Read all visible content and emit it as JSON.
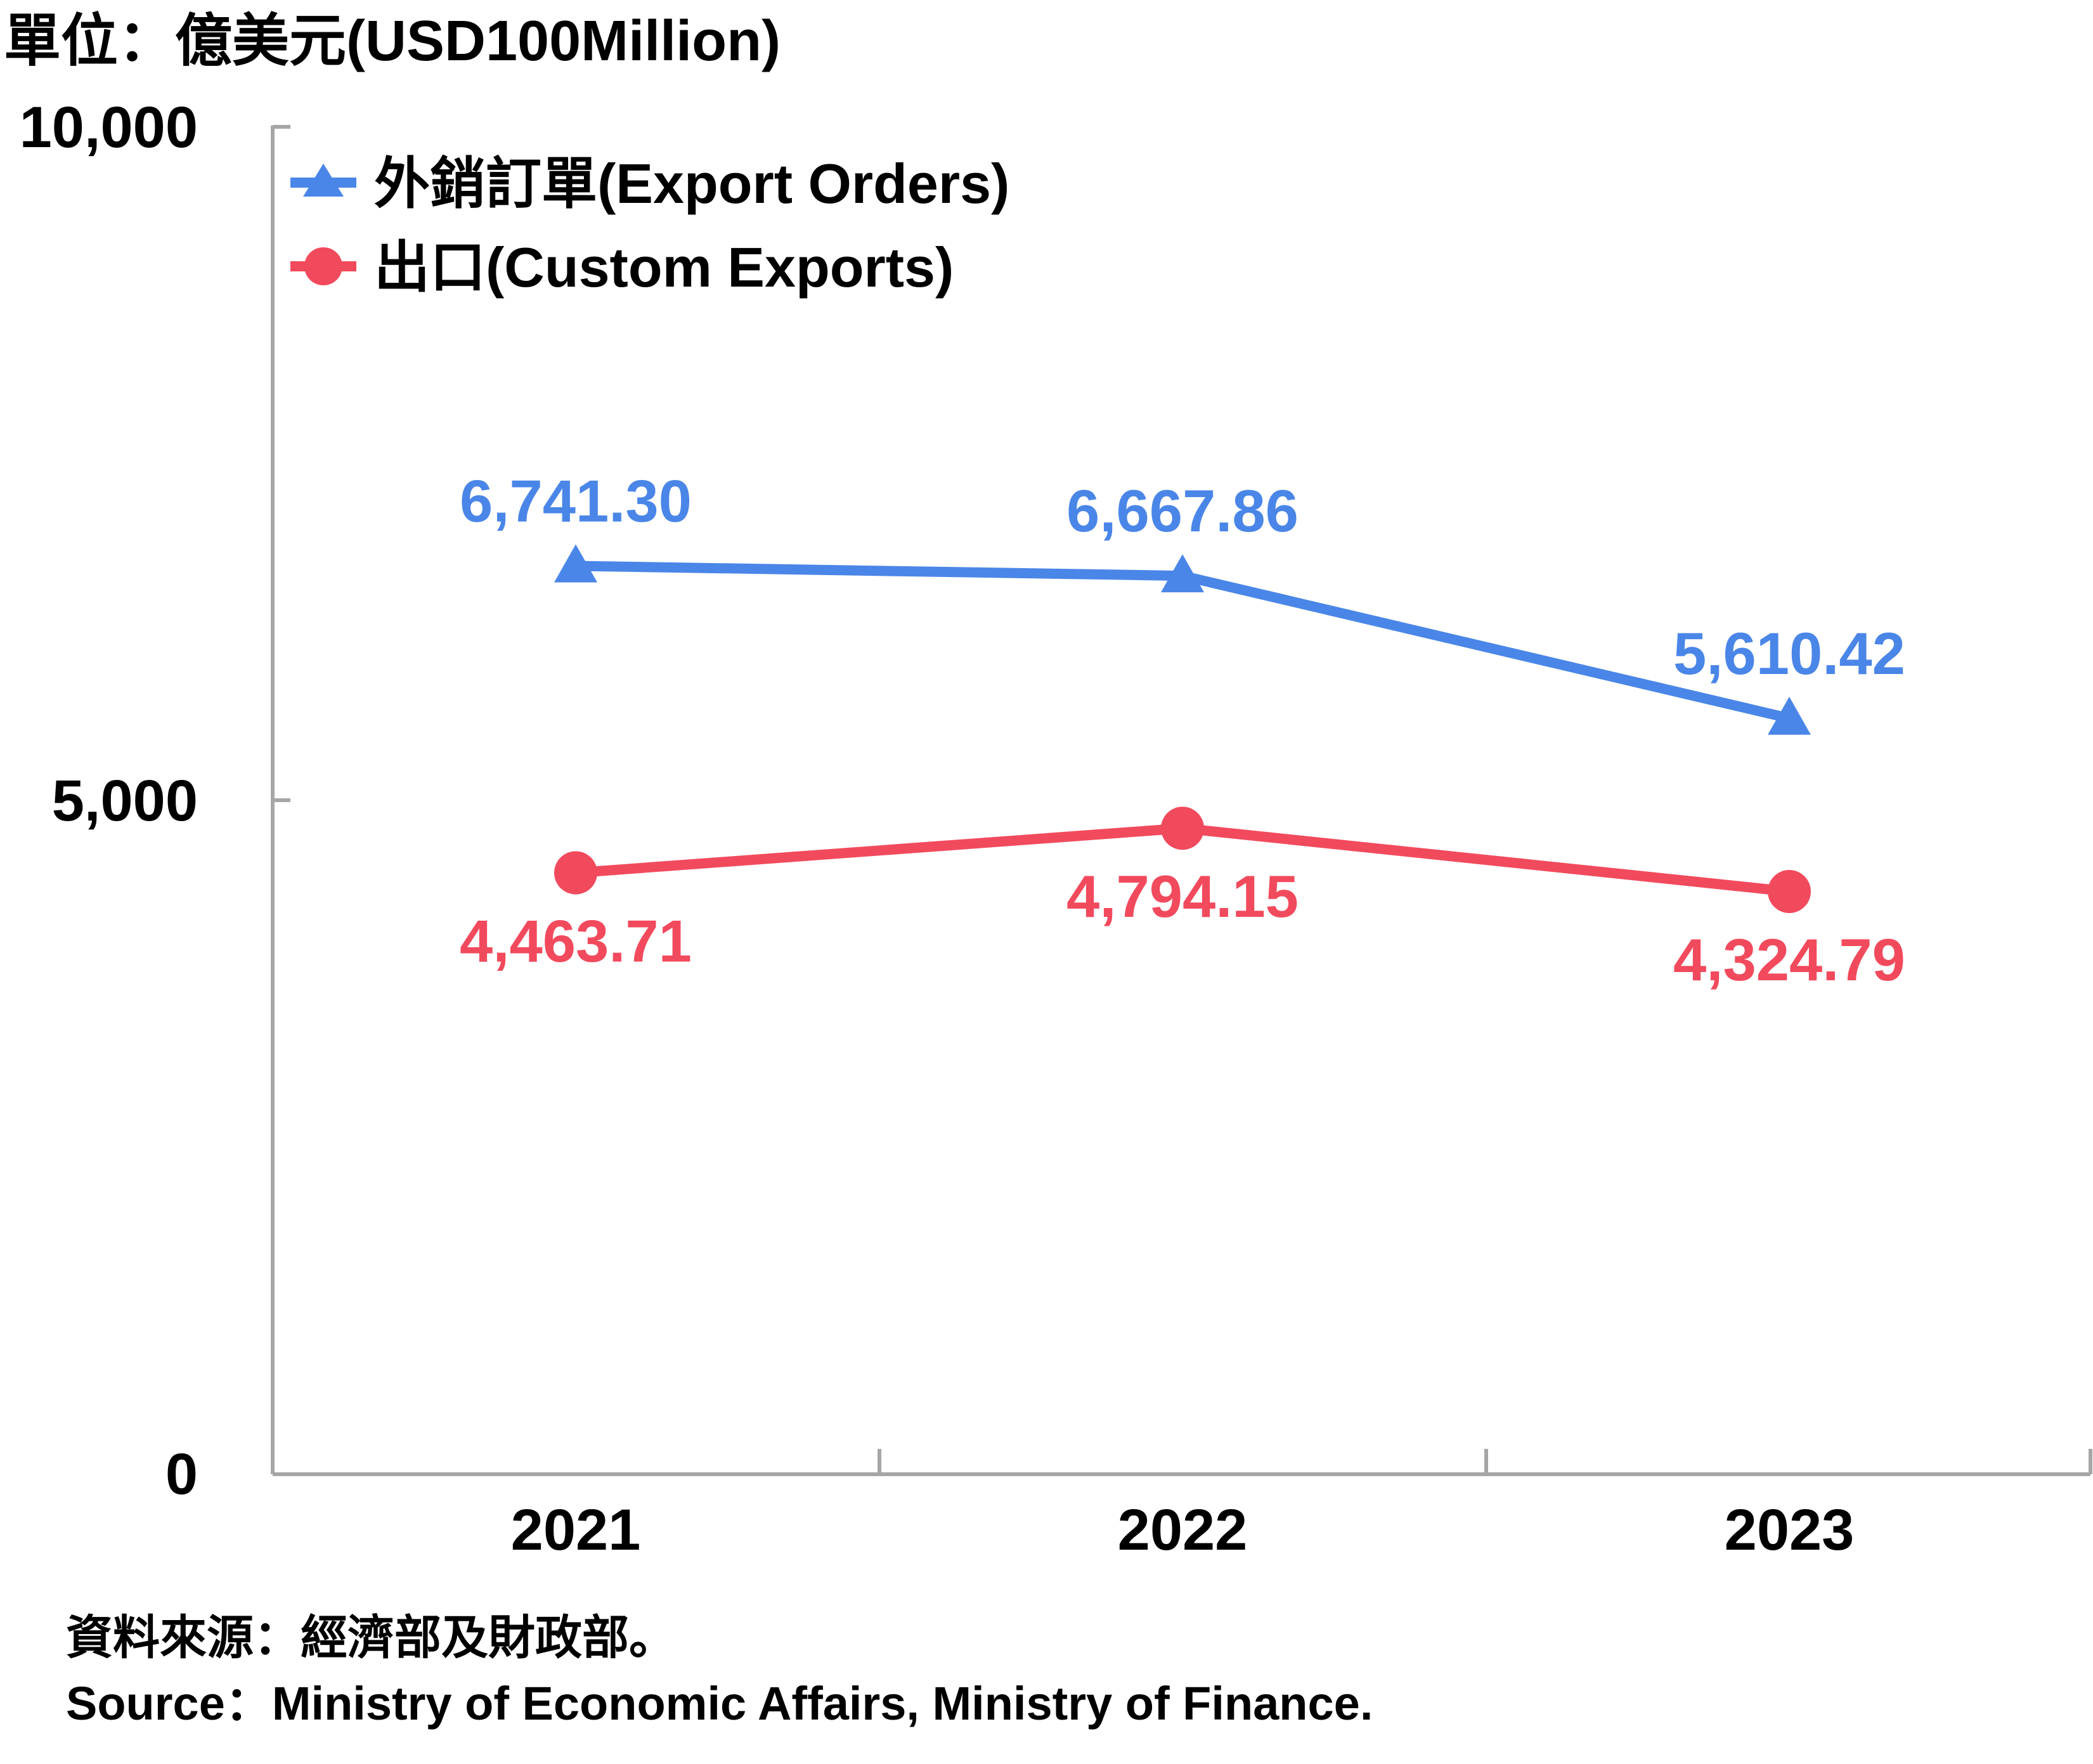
{
  "chart_data": {
    "type": "line",
    "unit_label": "單位：億美元(USD100Million)",
    "categories": [
      "2021",
      "2022",
      "2023"
    ],
    "ylim": [
      0,
      10000
    ],
    "y_ticks": [
      "0",
      "5,000",
      "10,000"
    ],
    "y_tick_values": [
      0,
      5000,
      10000
    ],
    "grid": false,
    "legend_position": "top-left",
    "series": [
      {
        "name": "外銷訂單(Export Orders)",
        "marker": "triangle",
        "color": "#4a86e8",
        "values": [
          6741.3,
          6667.86,
          5610.42
        ],
        "labels": [
          "6,741.30",
          "6,667.86",
          "5,610.42"
        ]
      },
      {
        "name": "出口(Custom Exports)",
        "marker": "circle",
        "color": "#f24a5d",
        "values": [
          4463.71,
          4794.15,
          4324.79
        ],
        "labels": [
          "4,463.71",
          "4,794.15",
          "4,324.79"
        ]
      }
    ]
  },
  "source": {
    "line1": "資料來源：經濟部及財政部。",
    "line2": "Source：Ministry of Economic Affairs, Ministry of Finance."
  }
}
